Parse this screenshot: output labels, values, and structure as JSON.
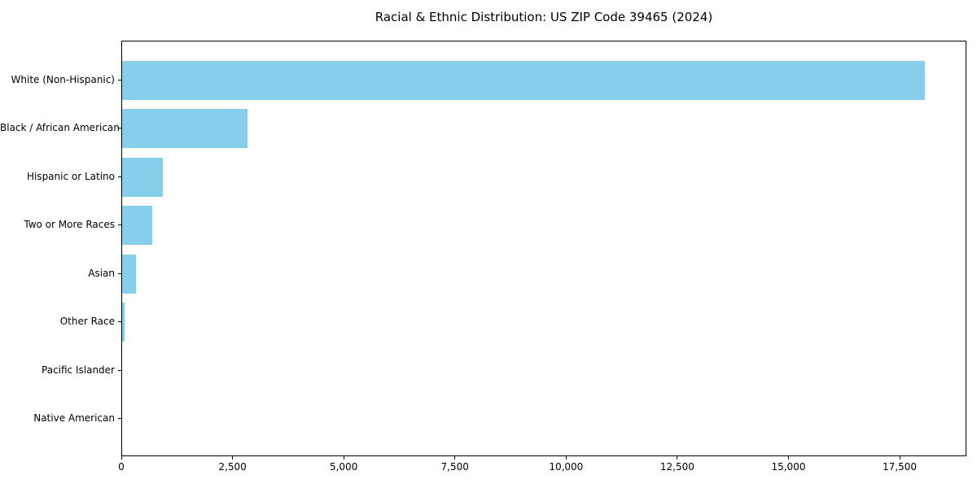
{
  "chart_data": {
    "type": "bar",
    "orientation": "horizontal",
    "title": "Racial & Ethnic Distribution: US ZIP Code 39465 (2024)",
    "categories": [
      "White (Non-Hispanic)",
      "Black / African American",
      "Hispanic or Latino",
      "Two or More Races",
      "Asian",
      "Other Race",
      "Pacific Islander",
      "Native American"
    ],
    "values": [
      18080,
      2830,
      920,
      670,
      310,
      60,
      0,
      0
    ],
    "xlabel": "",
    "ylabel": "",
    "xlim": [
      0,
      19000
    ],
    "x_ticks": [
      0,
      2500,
      5000,
      7500,
      10000,
      12500,
      15000,
      17500
    ],
    "x_tick_labels": [
      "0",
      "2,500",
      "5,000",
      "7,500",
      "10,000",
      "12,500",
      "15,000",
      "17,500"
    ],
    "bar_color": "#87CEEB",
    "axis_color": "#000000",
    "background_color": "#ffffff",
    "grid": false,
    "legend": null
  }
}
